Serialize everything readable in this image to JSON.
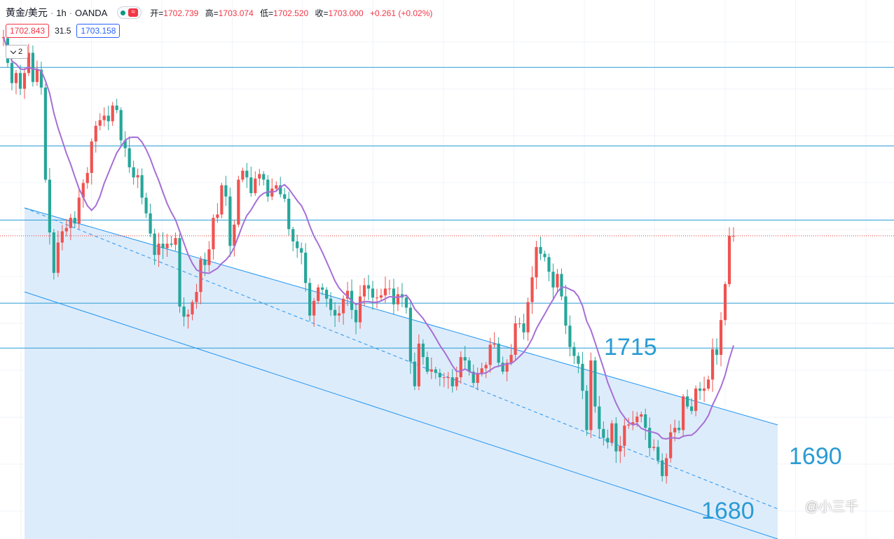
{
  "header": {
    "symbol": "黄金/美元",
    "interval": "1h",
    "broker": "OANDA",
    "open_label": "开=",
    "open": "1702.739",
    "high_label": "高=",
    "high": "1703.074",
    "low_label": "低=",
    "low": "1702.520",
    "close_label": "收=",
    "close": "1703.000",
    "change": "+0.261 (+0.02%)",
    "status_icon": "market-open-dot",
    "wave_icon": "wave-icon"
  },
  "quote": {
    "sell": "1702.843",
    "spread": "31.5",
    "buy": "1703.158"
  },
  "indicators": {
    "collapse_count": "2"
  },
  "annotations": {
    "label_1715": "1715",
    "label_1690": "1690",
    "label_1680": "1680"
  },
  "watermark": {
    "text": "@小三千"
  },
  "colors": {
    "up": "#ef5350",
    "down": "#26a69a",
    "ma": "#a66fd6",
    "channel_fill": "#d7e9fa",
    "channel_line": "#2196f3",
    "level_line": "#2a9bd4",
    "label": "#2a9bd4",
    "price_line": "#e53935"
  },
  "chart_data": {
    "type": "candlestick",
    "symbol": "XAUUSD",
    "interval": "1h",
    "y_range": [
      1676,
      1724
    ],
    "levels": [
      1718,
      1711,
      1704.4,
      1697,
      1693
    ],
    "horizontal_levels_labeled": [
      1715,
      1690,
      1680
    ],
    "last_price": 1703.0,
    "channel": {
      "upper": [
        [
          0,
          1716.3
        ],
        [
          147,
          1697.3
        ]
      ],
      "mid": [
        [
          0,
          1709.6
        ],
        [
          147,
          1690.4
        ]
      ],
      "lower": [
        [
          0,
          1703.4
        ],
        [
          147,
          1682.7
        ]
      ]
    },
    "candles": [
      [
        1720.6,
        1720.7
      ],
      [
        1720.6,
        1718.4
      ],
      [
        1718.4,
        1716.6
      ],
      [
        1716.6,
        1717.5
      ],
      [
        1717.5,
        1716.1
      ],
      [
        1716.1,
        1717.5
      ],
      [
        1717.5,
        1719.3
      ],
      [
        1719.3,
        1716.7
      ],
      [
        1716.7,
        1717.8
      ],
      [
        1717.8,
        1716.2
      ],
      [
        1716.2,
        1708.0
      ],
      [
        1708.0,
        1703.3
      ],
      [
        1703.3,
        1699.7
      ],
      [
        1699.7,
        1702.4
      ],
      [
        1702.4,
        1703.4
      ],
      [
        1703.4,
        1703.7
      ],
      [
        1703.7,
        1704.6
      ],
      [
        1704.6,
        1704.1
      ],
      [
        1704.1,
        1706.4
      ],
      [
        1706.4,
        1707.7
      ],
      [
        1707.7,
        1708.6
      ],
      [
        1708.6,
        1711.4
      ],
      [
        1711.4,
        1712.8
      ],
      [
        1712.8,
        1713.3
      ],
      [
        1713.3,
        1713.7
      ],
      [
        1713.7,
        1713.2
      ],
      [
        1713.2,
        1714.6
      ],
      [
        1714.6,
        1714.2
      ],
      [
        1714.2,
        1711.5
      ],
      [
        1711.5,
        1710.8
      ],
      [
        1710.8,
        1709.1
      ],
      [
        1709.1,
        1708.2
      ],
      [
        1708.2,
        1708.4
      ],
      [
        1708.4,
        1706.4
      ],
      [
        1706.4,
        1705.0
      ],
      [
        1705.0,
        1703.2
      ],
      [
        1703.2,
        1701.3
      ],
      [
        1701.3,
        1702.3
      ],
      [
        1702.3,
        1701.9
      ],
      [
        1701.9,
        1702.3
      ],
      [
        1702.3,
        1702.2
      ],
      [
        1702.2,
        1702.8
      ],
      [
        1702.8,
        1696.7
      ],
      [
        1696.7,
        1695.8
      ],
      [
        1695.8,
        1696.0
      ],
      [
        1696.0,
        1697.1
      ],
      [
        1697.1,
        1698.0
      ],
      [
        1698.0,
        1700.9
      ],
      [
        1700.9,
        1700.4
      ],
      [
        1700.4,
        1701.8
      ],
      [
        1701.8,
        1704.6
      ],
      [
        1704.6,
        1704.9
      ],
      [
        1704.9,
        1707.5
      ],
      [
        1707.5,
        1706.5
      ],
      [
        1706.5,
        1702.1
      ],
      [
        1702.1,
        1704.0
      ],
      [
        1704.0,
        1708.0
      ],
      [
        1708.0,
        1708.8
      ],
      [
        1708.8,
        1708.2
      ],
      [
        1708.2,
        1706.8
      ],
      [
        1706.8,
        1708.1
      ],
      [
        1708.1,
        1708.5
      ],
      [
        1708.5,
        1708.0
      ],
      [
        1708.0,
        1706.5
      ],
      [
        1706.5,
        1707.2
      ],
      [
        1707.2,
        1707.5
      ],
      [
        1707.5,
        1706.7
      ],
      [
        1706.7,
        1706.3
      ],
      [
        1706.3,
        1703.6
      ],
      [
        1703.6,
        1702.5
      ],
      [
        1702.5,
        1701.9
      ],
      [
        1701.9,
        1701.5
      ],
      [
        1701.5,
        1698.8
      ],
      [
        1698.8,
        1695.9
      ],
      [
        1695.9,
        1697.2
      ],
      [
        1697.2,
        1698.4
      ],
      [
        1698.4,
        1698.2
      ],
      [
        1698.2,
        1697.4
      ],
      [
        1697.4,
        1696.4
      ],
      [
        1696.4,
        1695.9
      ],
      [
        1695.9,
        1696.1
      ],
      [
        1696.1,
        1697.4
      ],
      [
        1697.4,
        1698.1
      ],
      [
        1698.1,
        1696.4
      ],
      [
        1696.4,
        1695.3
      ],
      [
        1695.3,
        1697.6
      ],
      [
        1697.6,
        1698.6
      ],
      [
        1698.6,
        1698.3
      ],
      [
        1698.3,
        1697.5
      ],
      [
        1697.5,
        1697.5
      ],
      [
        1697.5,
        1697.7
      ],
      [
        1697.7,
        1698.3
      ],
      [
        1698.3,
        1698.3
      ],
      [
        1698.3,
        1696.9
      ],
      [
        1696.9,
        1697.8
      ],
      [
        1697.8,
        1697.5
      ],
      [
        1697.5,
        1696.6
      ],
      [
        1696.6,
        1691.8
      ],
      [
        1691.8,
        1689.6
      ],
      [
        1689.6,
        1693.4
      ],
      [
        1693.4,
        1692.2
      ],
      [
        1692.2,
        1690.9
      ],
      [
        1690.9,
        1691.1
      ],
      [
        1691.1,
        1690.8
      ],
      [
        1690.8,
        1690.4
      ],
      [
        1690.4,
        1690.4
      ],
      [
        1690.4,
        1690.4
      ],
      [
        1690.4,
        1689.6
      ],
      [
        1689.6,
        1690.4
      ],
      [
        1690.4,
        1692.2
      ],
      [
        1692.2,
        1691.9
      ],
      [
        1691.9,
        1690.9
      ],
      [
        1690.9,
        1689.9
      ],
      [
        1689.9,
        1690.7
      ],
      [
        1690.7,
        1691.2
      ],
      [
        1691.2,
        1691.5
      ],
      [
        1691.5,
        1693.3
      ],
      [
        1693.3,
        1693.4
      ],
      [
        1693.4,
        1691.7
      ],
      [
        1691.7,
        1690.9
      ],
      [
        1690.9,
        1691.7
      ],
      [
        1691.7,
        1692.4
      ],
      [
        1692.4,
        1695.2
      ],
      [
        1695.2,
        1695.2
      ],
      [
        1695.2,
        1694.4
      ],
      [
        1694.4,
        1697.1
      ],
      [
        1697.1,
        1699.3
      ],
      [
        1699.3,
        1702.0
      ],
      [
        1702.0,
        1701.4
      ],
      [
        1701.4,
        1701.1
      ],
      [
        1701.1,
        1699.8
      ],
      [
        1699.8,
        1698.4
      ],
      [
        1698.4,
        1699.6
      ],
      [
        1699.6,
        1697.6
      ],
      [
        1697.6,
        1695.0
      ],
      [
        1695.0,
        1693.1
      ],
      [
        1693.1,
        1692.3
      ],
      [
        1692.3,
        1691.6
      ],
      [
        1691.6,
        1689.2
      ],
      [
        1689.2,
        1685.7
      ],
      [
        1685.7,
        1691.9
      ],
      [
        1691.9,
        1687.8
      ],
      [
        1687.8,
        1685.8
      ],
      [
        1685.8,
        1685.0
      ],
      [
        1685.0,
        1684.6
      ],
      [
        1684.6,
        1686.3
      ],
      [
        1686.3,
        1683.8
      ],
      [
        1683.8,
        1684.3
      ],
      [
        1684.3,
        1686.1
      ],
      [
        1686.1,
        1686.2
      ],
      [
        1686.2,
        1686.4
      ],
      [
        1686.4,
        1686.9
      ],
      [
        1686.9,
        1687.1
      ],
      [
        1687.1,
        1685.9
      ],
      [
        1685.9,
        1684.1
      ],
      [
        1684.1,
        1684.2
      ],
      [
        1684.2,
        1683.0
      ],
      [
        1683.0,
        1681.6
      ],
      [
        1681.6,
        1683.2
      ],
      [
        1683.2,
        1685.5
      ],
      [
        1685.5,
        1685.9
      ],
      [
        1685.9,
        1685.7
      ],
      [
        1685.7,
        1688.7
      ],
      [
        1688.7,
        1687.8
      ],
      [
        1687.8,
        1687.4
      ],
      [
        1687.4,
        1689.4
      ],
      [
        1689.4,
        1689.2
      ],
      [
        1689.2,
        1689.4
      ],
      [
        1689.4,
        1690.2
      ],
      [
        1690.2,
        1692.9
      ],
      [
        1692.9,
        1692.4
      ],
      [
        1692.4,
        1695.5
      ],
      [
        1695.5,
        1698.7
      ],
      [
        1698.7,
        1703.0
      ],
      [
        1703.0,
        1703.0
      ]
    ]
  }
}
